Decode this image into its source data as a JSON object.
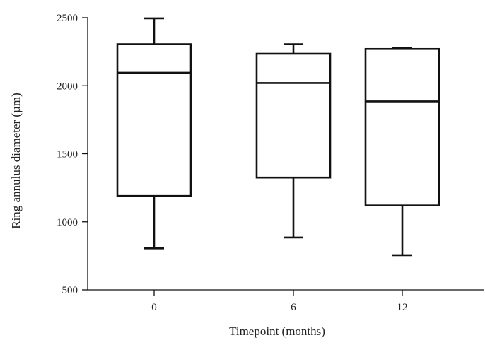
{
  "chart_data": {
    "type": "box",
    "xlabel": "Timepoint (months)",
    "ylabel": "Ring annulus diameter (µm)",
    "ylim": [
      500,
      2500
    ],
    "yticks": [
      500,
      1000,
      1500,
      2000,
      2500
    ],
    "categories": [
      "0",
      "6",
      "12"
    ],
    "boxes": [
      {
        "category": "0",
        "whisker_low": 805,
        "q1": 1190,
        "median": 2095,
        "q3": 2305,
        "whisker_high": 2495
      },
      {
        "category": "6",
        "whisker_low": 885,
        "q1": 1325,
        "median": 2020,
        "q3": 2235,
        "whisker_high": 2305
      },
      {
        "category": "12",
        "whisker_low": 755,
        "q1": 1120,
        "median": 1885,
        "q3": 2270,
        "whisker_high": 2280
      }
    ],
    "grid": false,
    "legend": "none",
    "colors": {
      "stroke": "#111111",
      "fill": "#ffffff",
      "text": "#222222"
    }
  }
}
